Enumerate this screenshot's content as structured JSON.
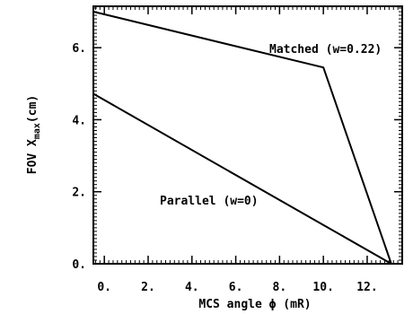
{
  "chart_data": {
    "type": "line",
    "xlabel": "MCS angle ϕ (mR)",
    "ylabel": "FOV X",
    "ylabel_sub": "max",
    "ylabel_unit": "(cm)",
    "xlim": [
      -0.5,
      13.6
    ],
    "ylim": [
      0,
      7.15
    ],
    "xticks": [
      0,
      2,
      4,
      6,
      8,
      10,
      12
    ],
    "xtick_labels": [
      "0.",
      "2.",
      "4.",
      "6.",
      "8.",
      "10.",
      "12."
    ],
    "yticks": [
      0,
      2,
      4,
      6
    ],
    "ytick_labels": [
      "0.",
      "2.",
      "4.",
      "6."
    ],
    "grid": false,
    "series": [
      {
        "name": "Matched (w=0.22)",
        "x": [
          -0.5,
          10.0,
          13.1
        ],
        "y": [
          7.0,
          5.45,
          0.0
        ]
      },
      {
        "name": "Parallel (w=0)",
        "x": [
          -0.5,
          13.1
        ],
        "y": [
          4.72,
          0.0
        ]
      }
    ]
  }
}
